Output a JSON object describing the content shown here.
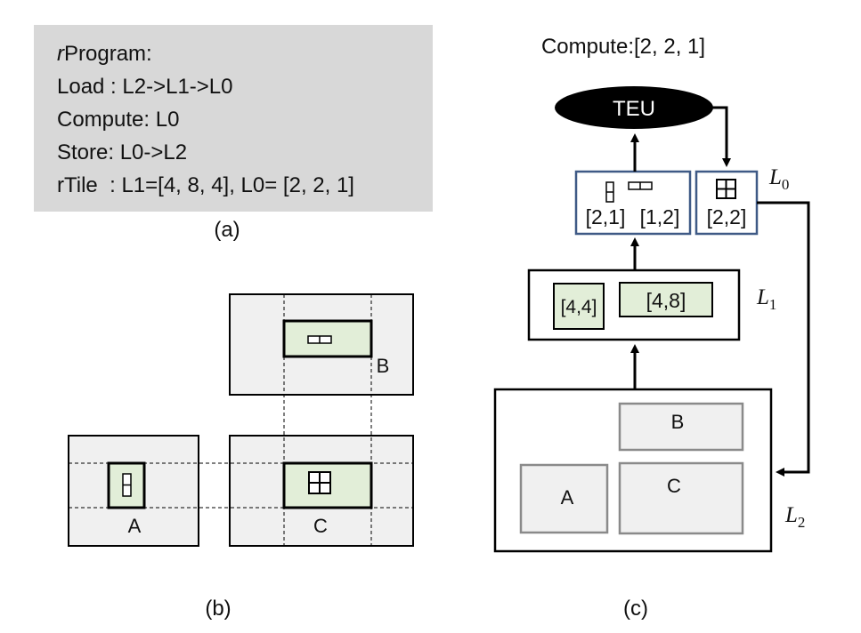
{
  "panel_a": {
    "program_prefix": "r",
    "program_rest": "Program:",
    "lines": [
      "Load : L2->L1->L0",
      "Compute: L0",
      "Store: L0->L2",
      "rTile  : L1=[4, 8, 4], L0= [2, 2, 1]"
    ],
    "caption": "(a)"
  },
  "panel_b": {
    "label_a": "A",
    "label_b": "B",
    "label_c": "C",
    "caption": "(b)"
  },
  "panel_c": {
    "compute_label": "Compute:[2, 2, 1]",
    "teu_label": "TEU",
    "l0_tile_a": "[2,1]",
    "l0_tile_b": "[1,2]",
    "l0_tile_c": "[2,2]",
    "l1_tile_a": "[4,4]",
    "l1_tile_b": "[4,8]",
    "l2_block_a": "A",
    "l2_block_b": "B",
    "l2_block_c": "C",
    "level_l0": "L",
    "level_l0_sub": "0",
    "level_l1": "L",
    "level_l1_sub": "1",
    "level_l2": "L",
    "level_l2_sub": "2",
    "caption": "(c)"
  },
  "colors": {
    "code_bg": "#d8d8d8",
    "tile_bg": "#f0f0f0",
    "green_fill": "#e2eed8",
    "blue_border": "#3f5a86",
    "gray_border": "#8a8a8a",
    "black": "#000000"
  }
}
